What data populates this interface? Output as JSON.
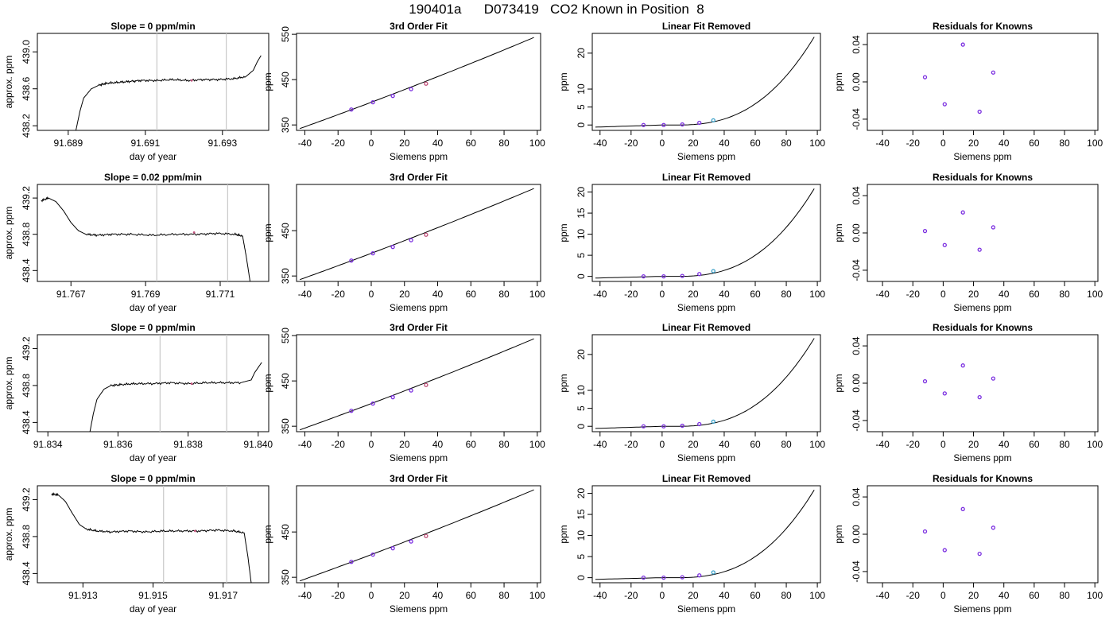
{
  "title": "190401a      D073419   CO2 Known in Position  8",
  "colors": {
    "line": "#000000",
    "reference_lines": "#c8c8c8",
    "knowns_point": "#7b2fe0",
    "highlight_point": "#c0507a",
    "last_known_point": "#3aa0c8"
  },
  "chart_data": [
    {
      "type": "line",
      "row": 1,
      "col": 1,
      "title": "Slope =  0  ppm/min",
      "xlabel": "day of year",
      "ylabel": "approx. ppm",
      "xlim": [
        91.6882,
        91.6942
      ],
      "ylim": [
        438.15,
        439.2
      ],
      "xticks": [
        91.689,
        91.691,
        91.693
      ],
      "xtick_labels": [
        "91.689",
        "91.691",
        "91.693"
      ],
      "yticks": [
        438.2,
        438.6,
        439.0
      ],
      "ytick_labels": [
        "438.2",
        "438.6",
        "439.0"
      ],
      "reference_x": [
        91.6913,
        91.6931
      ],
      "highlight": {
        "x": 91.6922,
        "y": 438.69
      },
      "series": [
        {
          "x": [
            91.6892,
            91.6893,
            91.6894,
            91.6896,
            91.6898,
            91.69,
            91.6903,
            91.6906,
            91.6909,
            91.6913,
            91.6917,
            91.6921,
            91.6925,
            91.6929,
            91.6933,
            91.6936,
            91.6938,
            91.6939,
            91.694
          ],
          "y": [
            438.15,
            438.35,
            438.5,
            438.6,
            438.64,
            438.66,
            438.67,
            438.68,
            438.69,
            438.69,
            438.7,
            438.69,
            438.7,
            438.7,
            438.71,
            438.73,
            438.8,
            438.89,
            438.96
          ]
        }
      ]
    },
    {
      "type": "line",
      "row": 1,
      "col": 2,
      "title": "3rd Order Fit",
      "xlabel": "Siemens ppm",
      "ylabel": "ppm",
      "xlim": [
        -45,
        102
      ],
      "ylim": [
        338,
        552
      ],
      "xticks": [
        -40,
        -20,
        0,
        20,
        40,
        60,
        80,
        100
      ],
      "xtick_labels": [
        "-40",
        "-20",
        "0",
        "20",
        "40",
        "60",
        "80",
        "100"
      ],
      "yticks": [
        350,
        450,
        550
      ],
      "ytick_labels": [
        "350",
        "450",
        "550"
      ],
      "series": [
        {
          "x": [
            -43,
            0,
            98
          ],
          "y": [
            342,
            400,
            543
          ]
        }
      ],
      "points": {
        "x": [
          -12,
          1,
          13,
          24,
          33
        ],
        "y": [
          384,
          400,
          414,
          429,
          441
        ]
      }
    },
    {
      "type": "line",
      "row": 1,
      "col": 3,
      "title": "Linear Fit Removed",
      "xlabel": "Siemens ppm",
      "ylabel": "ppm",
      "xlim": [
        -45,
        102
      ],
      "ylim": [
        -1.5,
        25.5
      ],
      "xticks": [
        -40,
        -20,
        0,
        20,
        40,
        60,
        80,
        100
      ],
      "xtick_labels": [
        "-40",
        "-20",
        "0",
        "20",
        "40",
        "60",
        "80",
        "100"
      ],
      "yticks": [
        0,
        5,
        10,
        20
      ],
      "ytick_labels": [
        "0",
        "5",
        "10",
        "20"
      ],
      "series": [
        {
          "x": [
            -43,
            98
          ],
          "y": [
            -0.6,
            24.5
          ]
        }
      ],
      "points": {
        "x": [
          -12,
          1,
          13,
          24,
          33
        ],
        "y": [
          0,
          0,
          0.15,
          0.6,
          1.3
        ]
      }
    },
    {
      "type": "scatter",
      "row": 1,
      "col": 4,
      "title": "Residuals for Knowns",
      "xlabel": "Siemens ppm",
      "ylabel": "ppm",
      "xlim": [
        -50,
        102
      ],
      "ylim": [
        -0.052,
        0.052
      ],
      "xticks": [
        -40,
        -20,
        0,
        20,
        40,
        60,
        80,
        100
      ],
      "xtick_labels": [
        "-40",
        "-20",
        "0",
        "20",
        "40",
        "60",
        "80",
        "100"
      ],
      "yticks": [
        -0.04,
        0.0,
        0.04
      ],
      "ytick_labels": [
        "-0.04",
        "0.00",
        "0.04"
      ],
      "points": {
        "x": [
          -12,
          1,
          13,
          24,
          33
        ],
        "y": [
          0.005,
          -0.024,
          0.04,
          -0.032,
          0.01
        ]
      }
    },
    {
      "type": "line",
      "row": 2,
      "col": 1,
      "title": "Slope =  0.02  ppm/min",
      "xlabel": "day of year",
      "ylabel": "approx. ppm",
      "xlim": [
        91.7661,
        91.7723
      ],
      "ylim": [
        438.28,
        439.35
      ],
      "xticks": [
        91.767,
        91.769,
        91.771
      ],
      "xtick_labels": [
        "91.767",
        "91.769",
        "91.771"
      ],
      "yticks": [
        438.4,
        438.8,
        439.2
      ],
      "ytick_labels": [
        "438.4",
        "438.8",
        "439.2"
      ],
      "reference_x": [
        91.7693,
        91.7712
      ],
      "highlight": {
        "x": 91.7703,
        "y": 438.82
      },
      "series": [
        {
          "x": [
            91.7662,
            91.7664,
            91.7666,
            91.7668,
            91.767,
            91.7672,
            91.7674,
            91.7677,
            91.7681,
            91.7686,
            91.7692,
            91.7698,
            91.7704,
            91.7709,
            91.7714,
            91.7716,
            91.7717,
            91.7718
          ],
          "y": [
            439.17,
            439.2,
            439.16,
            439.06,
            438.93,
            438.84,
            438.8,
            438.79,
            438.8,
            438.8,
            438.79,
            438.8,
            438.8,
            438.81,
            438.8,
            438.78,
            438.55,
            438.28
          ]
        }
      ]
    },
    {
      "type": "line",
      "row": 2,
      "col": 2,
      "title": "3rd Order Fit",
      "xlabel": "Siemens ppm",
      "ylabel": "ppm",
      "xlim": [
        -45,
        102
      ],
      "ylim": [
        338,
        552
      ],
      "xticks": [
        -40,
        -20,
        0,
        20,
        40,
        60,
        80,
        100
      ],
      "xtick_labels": [
        "-40",
        "-20",
        "0",
        "20",
        "40",
        "60",
        "80",
        "100"
      ],
      "yticks": [
        350,
        450
      ],
      "ytick_labels": [
        "350",
        "450"
      ],
      "series": [
        {
          "x": [
            -43,
            0,
            98
          ],
          "y": [
            342,
            400,
            543
          ]
        }
      ],
      "points": {
        "x": [
          -12,
          1,
          13,
          24,
          33
        ],
        "y": [
          384,
          400,
          414,
          429,
          441
        ]
      }
    },
    {
      "type": "line",
      "row": 2,
      "col": 3,
      "title": "Linear Fit Removed",
      "xlabel": "Siemens ppm",
      "ylabel": "ppm",
      "xlim": [
        -45,
        102
      ],
      "ylim": [
        -1.2,
        21.8
      ],
      "xticks": [
        -40,
        -20,
        0,
        20,
        40,
        60,
        80,
        100
      ],
      "xtick_labels": [
        "-40",
        "-20",
        "0",
        "20",
        "40",
        "60",
        "80",
        "100"
      ],
      "yticks": [
        0,
        5,
        10,
        15,
        20
      ],
      "ytick_labels": [
        "0",
        "5",
        "10",
        "15",
        "20"
      ],
      "series": [
        {
          "x": [
            -43,
            98
          ],
          "y": [
            -0.4,
            20.8
          ]
        }
      ],
      "points": {
        "x": [
          -12,
          1,
          13,
          24,
          33
        ],
        "y": [
          0,
          0,
          0.1,
          0.55,
          1.25
        ]
      }
    },
    {
      "type": "scatter",
      "row": 2,
      "col": 4,
      "title": "Residuals for Knowns",
      "xlabel": "Siemens ppm",
      "ylabel": "ppm",
      "xlim": [
        -50,
        102
      ],
      "ylim": [
        -0.052,
        0.052
      ],
      "xticks": [
        -40,
        -20,
        0,
        20,
        40,
        60,
        80,
        100
      ],
      "xtick_labels": [
        "-40",
        "-20",
        "0",
        "20",
        "40",
        "60",
        "80",
        "100"
      ],
      "yticks": [
        -0.04,
        0.0,
        0.04
      ],
      "ytick_labels": [
        "-0.04",
        "0.00",
        "0.04"
      ],
      "points": {
        "x": [
          -12,
          1,
          13,
          24,
          33
        ],
        "y": [
          0.002,
          -0.013,
          0.022,
          -0.018,
          0.006
        ]
      }
    },
    {
      "type": "line",
      "row": 3,
      "col": 1,
      "title": "Slope =  0  ppm/min",
      "xlabel": "day of year",
      "ylabel": "approx. ppm",
      "xlim": [
        91.8337,
        91.8403
      ],
      "ylim": [
        438.3,
        439.35
      ],
      "xticks": [
        91.834,
        91.836,
        91.838,
        91.84
      ],
      "xtick_labels": [
        "91.834",
        "91.836",
        "91.838",
        "91.840"
      ],
      "yticks": [
        438.4,
        438.8,
        439.2
      ],
      "ytick_labels": [
        "438.4",
        "438.8",
        "439.2"
      ],
      "reference_x": [
        91.8372,
        91.8391
      ],
      "highlight": {
        "x": 91.8381,
        "y": 438.82
      },
      "series": [
        {
          "x": [
            91.8352,
            91.8353,
            91.8354,
            91.8356,
            91.8358,
            91.8361,
            91.8365,
            91.837,
            91.8375,
            91.838,
            91.8385,
            91.839,
            91.8395,
            91.8398,
            91.8399,
            91.8401
          ],
          "y": [
            438.3,
            438.5,
            438.65,
            438.76,
            438.8,
            438.81,
            438.82,
            438.82,
            438.83,
            438.82,
            438.83,
            438.83,
            438.83,
            438.86,
            438.94,
            439.05
          ]
        }
      ]
    },
    {
      "type": "line",
      "row": 3,
      "col": 2,
      "title": "3rd Order Fit",
      "xlabel": "Siemens ppm",
      "ylabel": "ppm",
      "xlim": [
        -45,
        102
      ],
      "ylim": [
        338,
        552
      ],
      "xticks": [
        -40,
        -20,
        0,
        20,
        40,
        60,
        80,
        100
      ],
      "xtick_labels": [
        "-40",
        "-20",
        "0",
        "20",
        "40",
        "60",
        "80",
        "100"
      ],
      "yticks": [
        350,
        450,
        550
      ],
      "ytick_labels": [
        "350",
        "450",
        "550"
      ],
      "series": [
        {
          "x": [
            -43,
            0,
            98
          ],
          "y": [
            342,
            400,
            543
          ]
        }
      ],
      "points": {
        "x": [
          -12,
          1,
          13,
          24,
          33
        ],
        "y": [
          384,
          400,
          414,
          429,
          441
        ]
      }
    },
    {
      "type": "line",
      "row": 3,
      "col": 3,
      "title": "Linear Fit Removed",
      "xlabel": "Siemens ppm",
      "ylabel": "ppm",
      "xlim": [
        -45,
        102
      ],
      "ylim": [
        -1.5,
        25.5
      ],
      "xticks": [
        -40,
        -20,
        0,
        20,
        40,
        60,
        80,
        100
      ],
      "xtick_labels": [
        "-40",
        "-20",
        "0",
        "20",
        "40",
        "60",
        "80",
        "100"
      ],
      "yticks": [
        0,
        5,
        10,
        20
      ],
      "ytick_labels": [
        "0",
        "5",
        "10",
        "20"
      ],
      "series": [
        {
          "x": [
            -43,
            98
          ],
          "y": [
            -0.6,
            24.5
          ]
        }
      ],
      "points": {
        "x": [
          -12,
          1,
          13,
          24,
          33
        ],
        "y": [
          0,
          0,
          0.15,
          0.6,
          1.3
        ]
      }
    },
    {
      "type": "scatter",
      "row": 3,
      "col": 4,
      "title": "Residuals for Knowns",
      "xlabel": "Siemens ppm",
      "ylabel": "ppm",
      "xlim": [
        -50,
        102
      ],
      "ylim": [
        -0.052,
        0.052
      ],
      "xticks": [
        -40,
        -20,
        0,
        20,
        40,
        60,
        80,
        100
      ],
      "xtick_labels": [
        "-40",
        "-20",
        "0",
        "20",
        "40",
        "60",
        "80",
        "100"
      ],
      "yticks": [
        -0.04,
        0.0,
        0.04
      ],
      "ytick_labels": [
        "-0.04",
        "0.00",
        "0.04"
      ],
      "points": {
        "x": [
          -12,
          1,
          13,
          24,
          33
        ],
        "y": [
          0.002,
          -0.011,
          0.019,
          -0.015,
          0.005
        ]
      }
    },
    {
      "type": "line",
      "row": 4,
      "col": 1,
      "title": "Slope =  0  ppm/min",
      "xlabel": "day of year",
      "ylabel": "approx. ppm",
      "xlim": [
        91.9117,
        91.9183
      ],
      "ylim": [
        438.3,
        439.35
      ],
      "xticks": [
        91.913,
        91.915,
        91.917
      ],
      "xtick_labels": [
        "91.913",
        "91.915",
        "91.917"
      ],
      "yticks": [
        438.4,
        438.8,
        439.2
      ],
      "ytick_labels": [
        "438.4",
        "438.8",
        "439.2"
      ],
      "reference_x": [
        91.9153,
        91.9171
      ],
      "highlight": {
        "x": 91.9162,
        "y": 438.86
      },
      "series": [
        {
          "x": [
            91.9121,
            91.9123,
            91.9125,
            91.9127,
            91.9129,
            91.9131,
            91.9134,
            91.9138,
            91.9143,
            91.9148,
            91.9153,
            91.9158,
            91.9163,
            91.9168,
            91.9173,
            91.9176,
            91.9177,
            91.9178
          ],
          "y": [
            439.26,
            439.25,
            439.18,
            439.05,
            438.93,
            438.88,
            438.86,
            438.85,
            438.86,
            438.85,
            438.86,
            438.86,
            438.86,
            438.87,
            438.86,
            438.84,
            438.6,
            438.3
          ]
        }
      ]
    },
    {
      "type": "line",
      "row": 4,
      "col": 2,
      "title": "3rd Order Fit",
      "xlabel": "Siemens ppm",
      "ylabel": "ppm",
      "xlim": [
        -45,
        102
      ],
      "ylim": [
        338,
        552
      ],
      "xticks": [
        -40,
        -20,
        0,
        20,
        40,
        60,
        80,
        100
      ],
      "xtick_labels": [
        "-40",
        "-20",
        "0",
        "20",
        "40",
        "60",
        "80",
        "100"
      ],
      "yticks": [
        350,
        450
      ],
      "ytick_labels": [
        "350",
        "450"
      ],
      "series": [
        {
          "x": [
            -43,
            0,
            98
          ],
          "y": [
            342,
            400,
            543
          ]
        }
      ],
      "points": {
        "x": [
          -12,
          1,
          13,
          24,
          33
        ],
        "y": [
          384,
          400,
          414,
          429,
          441
        ]
      }
    },
    {
      "type": "line",
      "row": 4,
      "col": 3,
      "title": "Linear Fit Removed",
      "xlabel": "Siemens ppm",
      "ylabel": "ppm",
      "xlim": [
        -45,
        102
      ],
      "ylim": [
        -1.2,
        21.8
      ],
      "xticks": [
        -40,
        -20,
        0,
        20,
        40,
        60,
        80,
        100
      ],
      "xtick_labels": [
        "-40",
        "-20",
        "0",
        "20",
        "40",
        "60",
        "80",
        "100"
      ],
      "yticks": [
        0,
        5,
        10,
        15,
        20
      ],
      "ytick_labels": [
        "0",
        "5",
        "10",
        "15",
        "20"
      ],
      "series": [
        {
          "x": [
            -43,
            98
          ],
          "y": [
            -0.4,
            20.8
          ]
        }
      ],
      "points": {
        "x": [
          -12,
          1,
          13,
          24,
          33
        ],
        "y": [
          0,
          0,
          0.1,
          0.55,
          1.25
        ]
      }
    },
    {
      "type": "scatter",
      "row": 4,
      "col": 4,
      "title": "Residuals for Knowns",
      "xlabel": "Siemens ppm",
      "ylabel": "ppm",
      "xlim": [
        -50,
        102
      ],
      "ylim": [
        -0.052,
        0.052
      ],
      "xticks": [
        -40,
        -20,
        0,
        20,
        40,
        60,
        80,
        100
      ],
      "xtick_labels": [
        "-40",
        "-20",
        "0",
        "20",
        "40",
        "60",
        "80",
        "100"
      ],
      "yticks": [
        -0.04,
        0.0,
        0.04
      ],
      "ytick_labels": [
        "-0.04",
        "0.00",
        "0.04"
      ],
      "points": {
        "x": [
          -12,
          1,
          13,
          24,
          33
        ],
        "y": [
          0.003,
          -0.017,
          0.027,
          -0.021,
          0.007
        ]
      }
    }
  ]
}
